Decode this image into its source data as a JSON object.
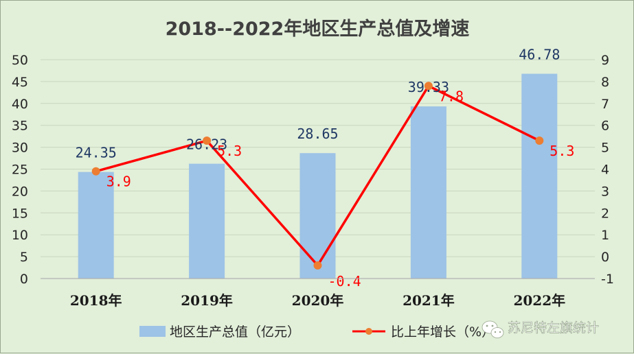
{
  "chart_data": {
    "type": "bar+line",
    "title": "2018--2022年地区生产总值及增速",
    "categories": [
      "2018年",
      "2019年",
      "2020年",
      "2021年",
      "2022年"
    ],
    "series": [
      {
        "name": "地区生产总值（亿元）",
        "type": "bar",
        "axis": "left",
        "values": [
          24.35,
          26.23,
          28.65,
          39.33,
          46.78
        ],
        "labels": [
          "24.35",
          "26.23",
          "28.65",
          "39.33",
          "46.78"
        ],
        "color": "#9dc3e6",
        "label_color": "#1f3864"
      },
      {
        "name": "比上年增长（%）",
        "type": "line",
        "axis": "right",
        "values": [
          3.9,
          5.3,
          -0.4,
          7.8,
          5.3
        ],
        "labels": [
          "3.9",
          "5.3",
          "-0.4",
          "7.8",
          "5.3"
        ],
        "color": "#ff0000",
        "marker_color": "#ed7d31",
        "label_color": "#ff0000"
      }
    ],
    "left_axis": {
      "min": 0,
      "max": 50,
      "step": 5,
      "ticks": [
        "0",
        "5",
        "10",
        "15",
        "20",
        "25",
        "30",
        "35",
        "40",
        "45",
        "50"
      ]
    },
    "right_axis": {
      "min": -1,
      "max": 9,
      "step": 1,
      "ticks": [
        "-1",
        "0",
        "1",
        "2",
        "3",
        "4",
        "5",
        "6",
        "7",
        "8",
        "9"
      ]
    },
    "grid": true,
    "legend_position": "bottom"
  },
  "watermark": {
    "text": "苏尼特左旗统计",
    "icon": "wechat-icon"
  },
  "colors": {
    "background": "#e2efd9",
    "gridline": "#c8d6bf"
  }
}
